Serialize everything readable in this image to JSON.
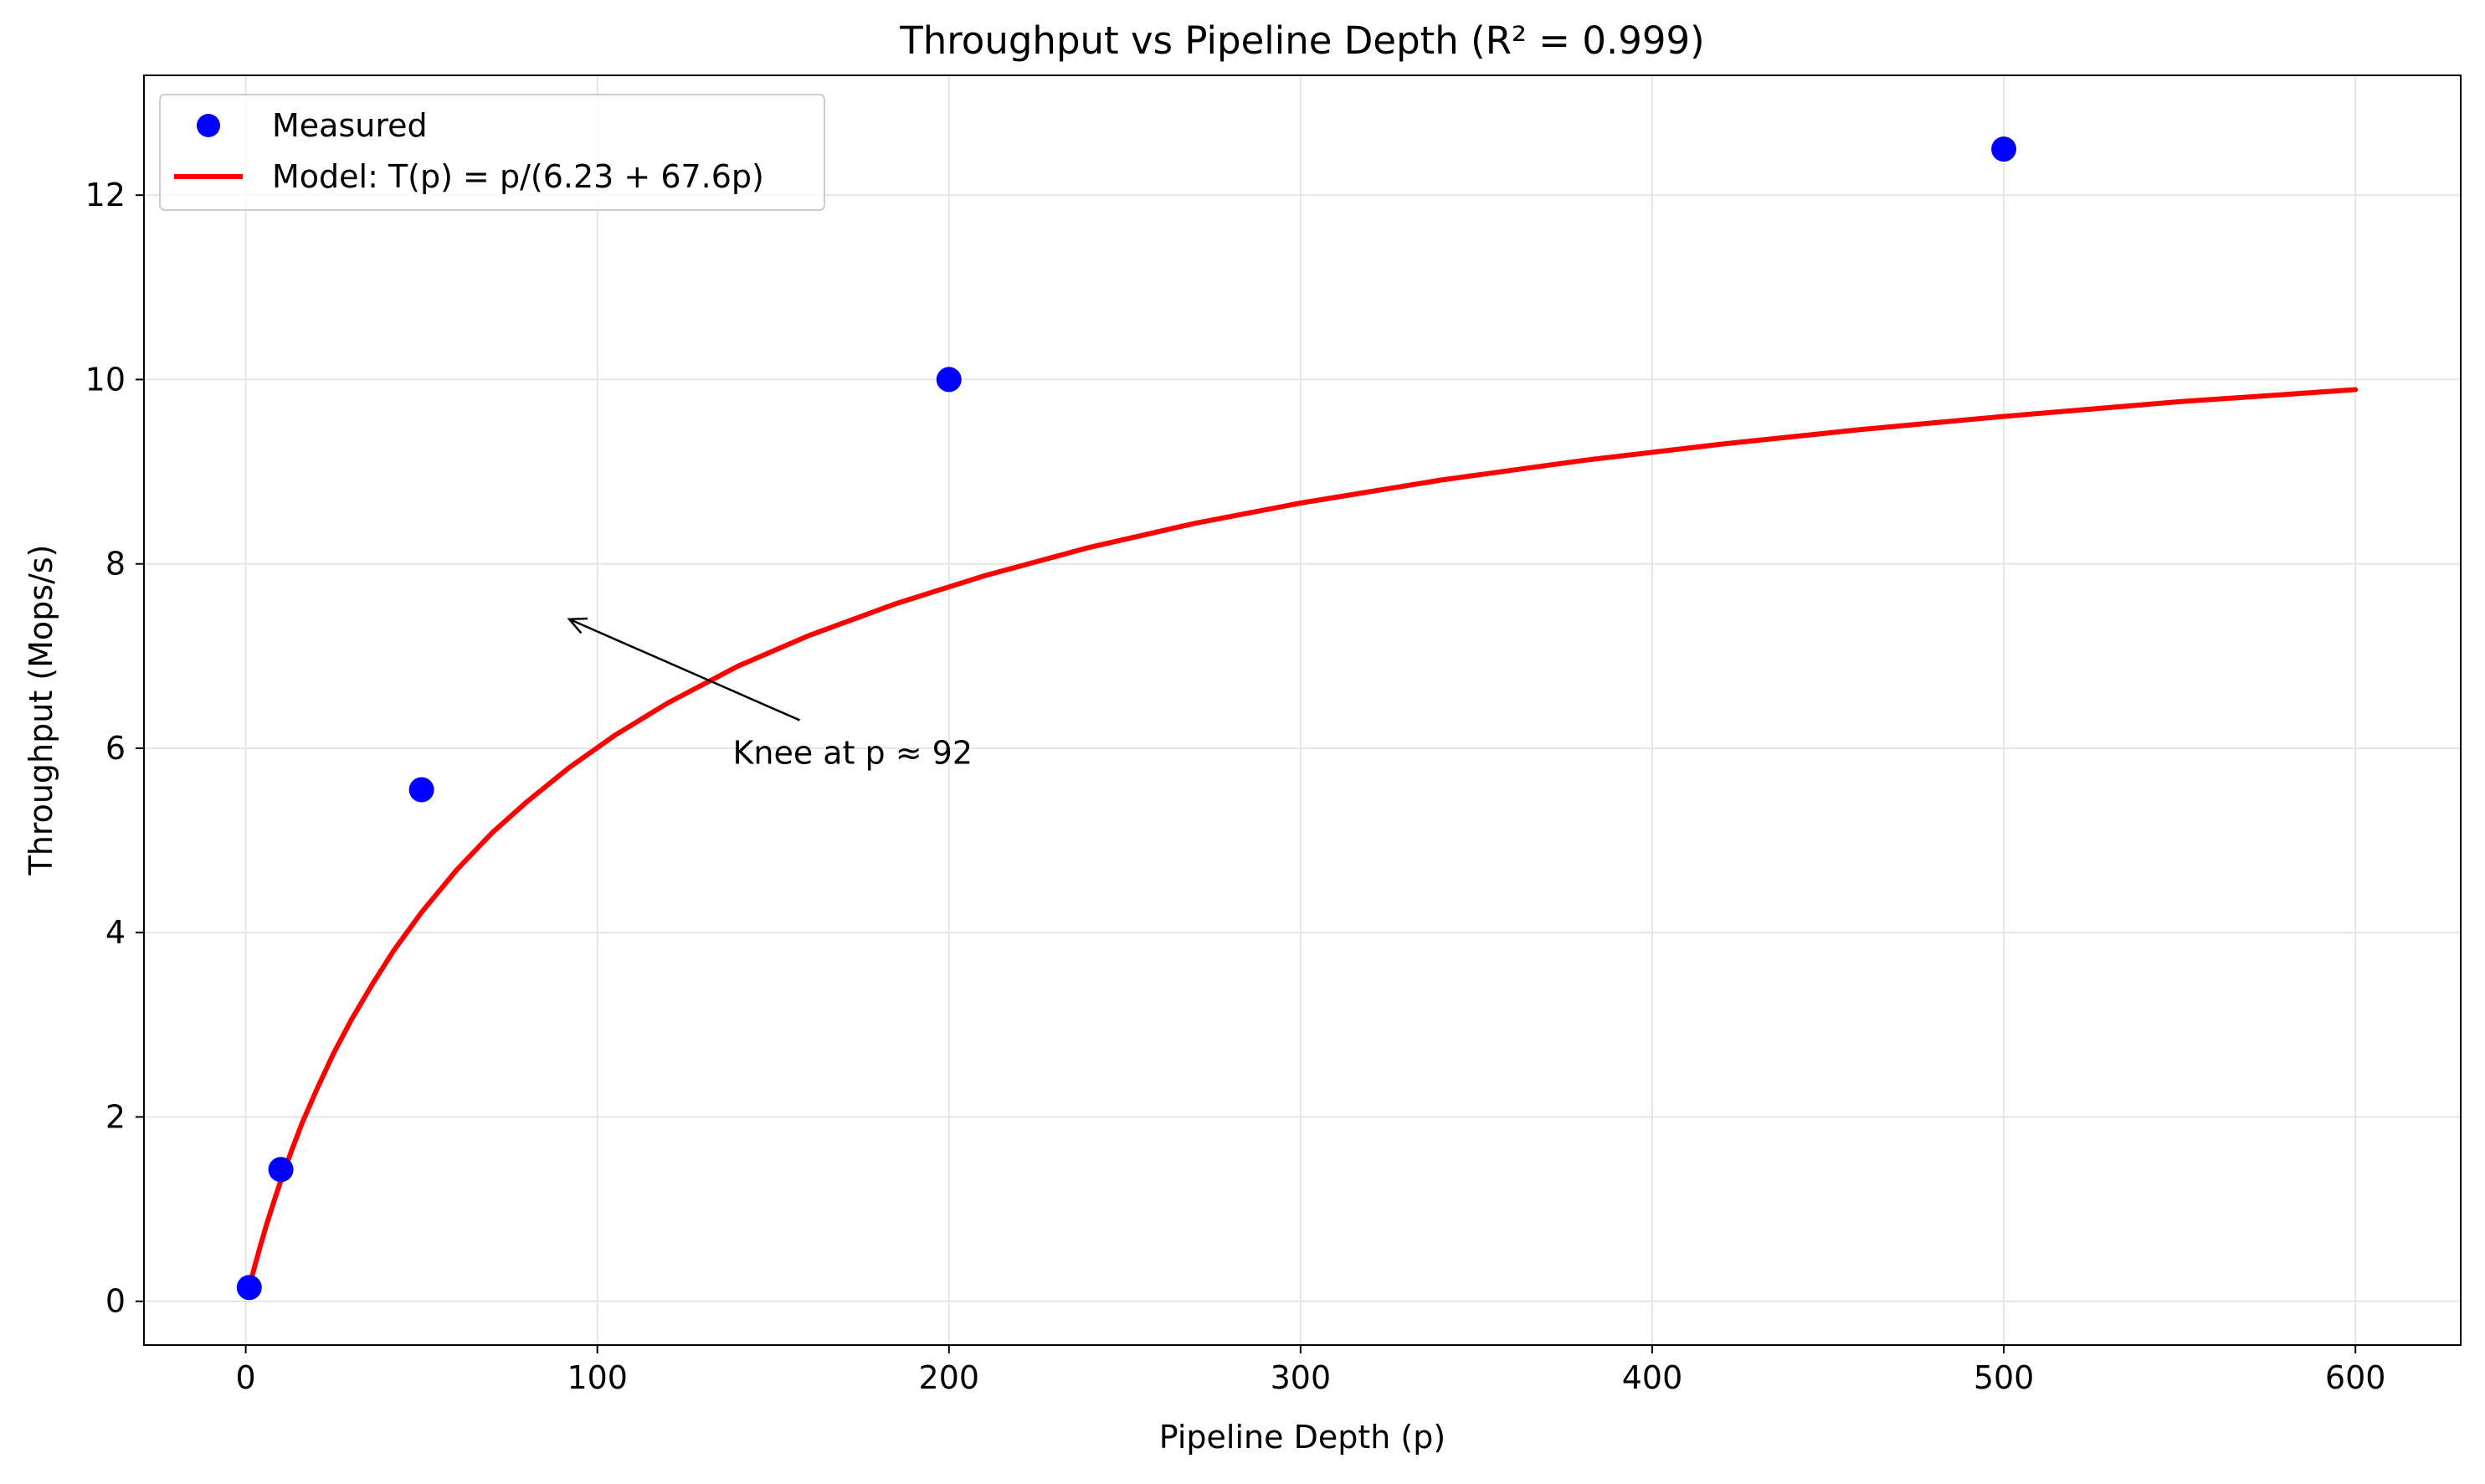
{
  "chart_data": {
    "type": "scatter",
    "title": "Throughput vs Pipeline Depth (R² = 0.999)",
    "xlabel": "Pipeline Depth (p)",
    "ylabel": "Throughput (Mops/s)",
    "xlim": [
      -28.95,
      629.95
    ],
    "ylim": [
      -0.4745,
      13.3
    ],
    "x_ticks": [
      0,
      100,
      200,
      300,
      400,
      500,
      600
    ],
    "x_tick_labels": [
      "0",
      "100",
      "200",
      "300",
      "400",
      "500",
      "600"
    ],
    "y_ticks": [
      0,
      2,
      4,
      6,
      8,
      10,
      12
    ],
    "y_tick_labels": [
      "0",
      "2",
      "4",
      "6",
      "8",
      "10",
      "12"
    ],
    "grid": true,
    "legend_position": "top-left",
    "series": [
      {
        "name": "Measured",
        "kind": "scatter",
        "color": "#0000ff",
        "x": [
          1,
          10,
          50,
          200,
          500
        ],
        "y": [
          0.15,
          1.43,
          5.55,
          10.0,
          12.5
        ]
      },
      {
        "name": "Model: T(p) = p/(6.23 + 67.6p)",
        "kind": "line",
        "color": "#ff0000",
        "x": [
          1,
          2,
          4,
          6,
          8,
          10,
          13,
          16,
          20,
          25,
          30,
          36,
          42,
          50,
          60,
          70,
          80,
          92,
          105,
          120,
          140,
          160,
          185,
          210,
          240,
          270,
          300,
          340,
          380,
          420,
          460,
          500,
          550,
          600
        ],
        "y": [
          0.15,
          0.3,
          0.58,
          0.84,
          1.08,
          1.31,
          1.63,
          1.93,
          2.28,
          2.69,
          3.05,
          3.44,
          3.8,
          4.22,
          4.68,
          5.08,
          5.42,
          5.79,
          6.14,
          6.49,
          6.89,
          7.22,
          7.57,
          7.87,
          8.18,
          8.44,
          8.66,
          8.91,
          9.12,
          9.3,
          9.46,
          9.6,
          9.76,
          9.89
        ]
      }
    ],
    "annotation": {
      "text": "Knee at p ≈ 92",
      "text_x": 138.5,
      "text_y": 6.05,
      "arrow_to_x": 92,
      "arrow_to_y": 7.4
    }
  }
}
